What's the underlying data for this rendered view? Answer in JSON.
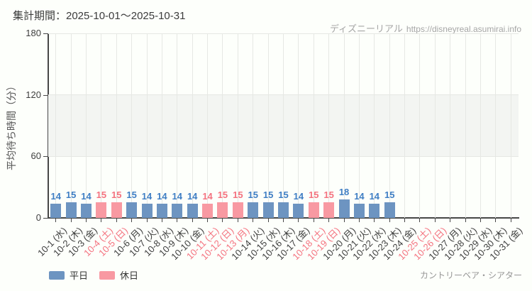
{
  "header": {
    "title": "集計期間：2025-10-01～2025-10-31",
    "watermark_brand": "ディズニーリアル",
    "watermark_url": "https://disneyreal.asumirai.info"
  },
  "chart_data": {
    "type": "bar",
    "title": "集計期間：2025-10-01～2025-10-31",
    "xlabel": "",
    "ylabel": "平均待ち時間（分）",
    "ylim": [
      0,
      180
    ],
    "yticks": [
      0,
      60,
      120,
      180
    ],
    "shaded_band": {
      "from": 60,
      "to": 120
    },
    "grid": "vertical-per-day",
    "categories": [
      "10-1 (水)",
      "10-2 (木)",
      "10-3 (金)",
      "10-4 (土)",
      "10-5 (日)",
      "10-6 (月)",
      "10-7 (火)",
      "10-8 (水)",
      "10-9 (木)",
      "10-10 (金)",
      "10-11 (土)",
      "10-12 (日)",
      "10-13 (月)",
      "10-14 (火)",
      "10-15 (水)",
      "10-16 (木)",
      "10-17 (金)",
      "10-18 (土)",
      "10-19 (日)",
      "10-20 (月)",
      "10-21 (火)",
      "10-22 (水)",
      "10-23 (木)",
      "10-24 (金)",
      "10-25 (土)",
      "10-26 (日)",
      "10-27 (月)",
      "10-28 (火)",
      "10-29 (水)",
      "10-30 (木)",
      "10-31 (金)"
    ],
    "values": [
      14,
      15,
      14,
      15,
      15,
      15,
      14,
      14,
      14,
      14,
      14,
      15,
      15,
      15,
      15,
      15,
      14,
      15,
      15,
      18,
      14,
      14,
      15,
      null,
      null,
      null,
      null,
      null,
      null,
      null,
      null
    ],
    "day_types": [
      "weekday",
      "weekday",
      "weekday",
      "holiday",
      "holiday",
      "weekday",
      "weekday",
      "weekday",
      "weekday",
      "weekday",
      "holiday",
      "holiday",
      "holiday",
      "weekday",
      "weekday",
      "weekday",
      "weekday",
      "holiday",
      "holiday",
      "weekday",
      "weekday",
      "weekday",
      "weekday",
      "weekday",
      "holiday",
      "holiday",
      "weekday",
      "weekday",
      "weekday",
      "weekday",
      "weekday"
    ],
    "colors": {
      "weekday_bar": "#6d94c1",
      "holiday_bar": "#f899a2",
      "weekday_label": "#3f7ec4",
      "holiday_label": "#f4727f"
    }
  },
  "legend": [
    {
      "type": "weekday",
      "label": "平日"
    },
    {
      "type": "holiday",
      "label": "休日"
    }
  ],
  "footer": {
    "attraction": "カントリーベア・シアター"
  }
}
